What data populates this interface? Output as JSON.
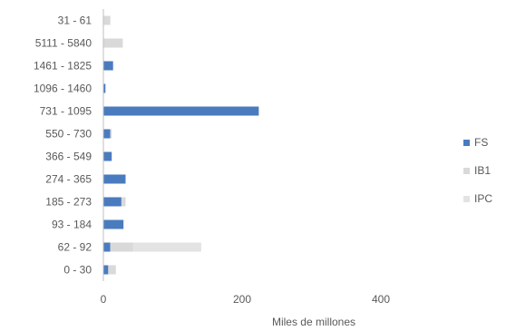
{
  "chart_data": {
    "type": "bar",
    "orientation": "horizontal",
    "stacked": true,
    "categories": [
      "31 - 61",
      "5111 - 5840",
      "1461 - 1825",
      "1096 - 1460",
      "731 - 1095",
      "550 - 730",
      "366 - 549",
      "274 - 365",
      "185 - 273",
      "93 - 184",
      "62 - 92",
      "0 - 30"
    ],
    "series": [
      {
        "name": "FS",
        "color": "#4a7bbf",
        "values": [
          0,
          0,
          14,
          3,
          224,
          10,
          12,
          32,
          26,
          29,
          10,
          7
        ]
      },
      {
        "name": "IB1",
        "color": "#d9d9d9",
        "values": [
          10,
          28,
          0,
          0,
          0,
          2,
          0,
          0,
          6,
          0,
          33,
          11
        ]
      },
      {
        "name": "IPC",
        "color": "#e3e3e3",
        "values": [
          0,
          0,
          0,
          0,
          0,
          0,
          0,
          0,
          0,
          0,
          98,
          0
        ]
      }
    ],
    "x_ticks": [
      "0",
      "200",
      "400"
    ],
    "xlabel": "Miles de millones",
    "xlim": [
      0,
      400
    ],
    "grid": false,
    "legend_position": "right"
  }
}
